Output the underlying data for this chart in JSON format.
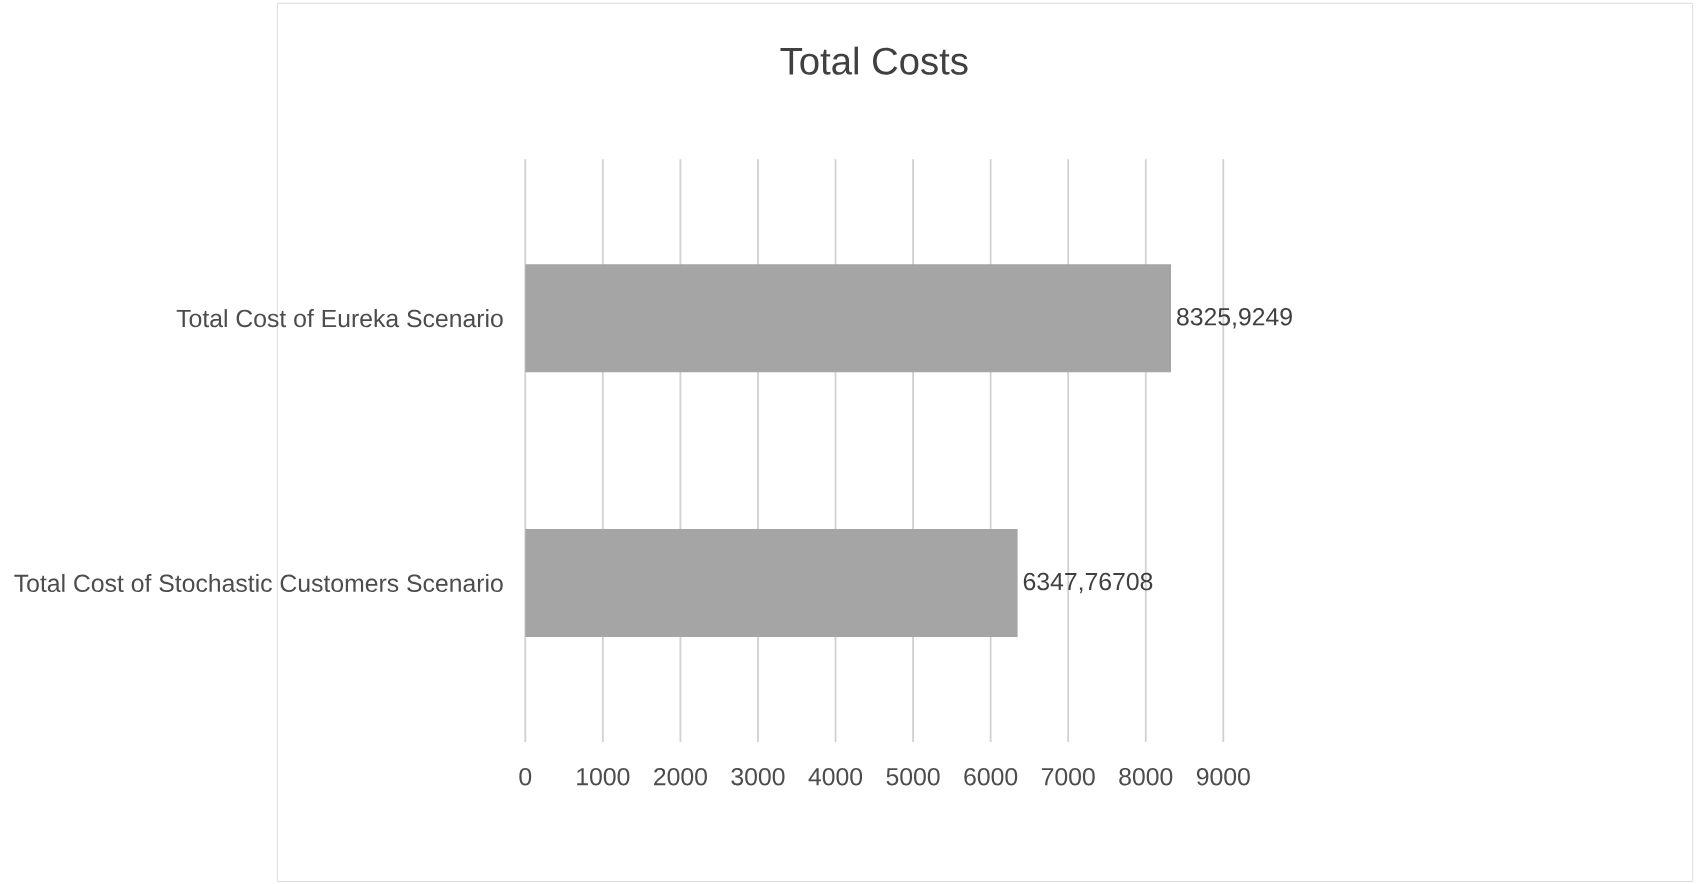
{
  "chart_data": {
    "type": "bar",
    "orientation": "horizontal",
    "title": "Total Costs",
    "categories": [
      "Total Cost of Eureka Scenario",
      "Total Cost of Stochastic Customers Scenario"
    ],
    "values": [
      8325.9249,
      6347.76708
    ],
    "value_labels": [
      "8325,9249",
      "6347,76708"
    ],
    "color": "#a5a5a5",
    "xlim": [
      0,
      9000
    ],
    "xticks": [
      0,
      1000,
      2000,
      3000,
      4000,
      5000,
      6000,
      7000,
      8000,
      9000
    ],
    "grid": "x"
  }
}
